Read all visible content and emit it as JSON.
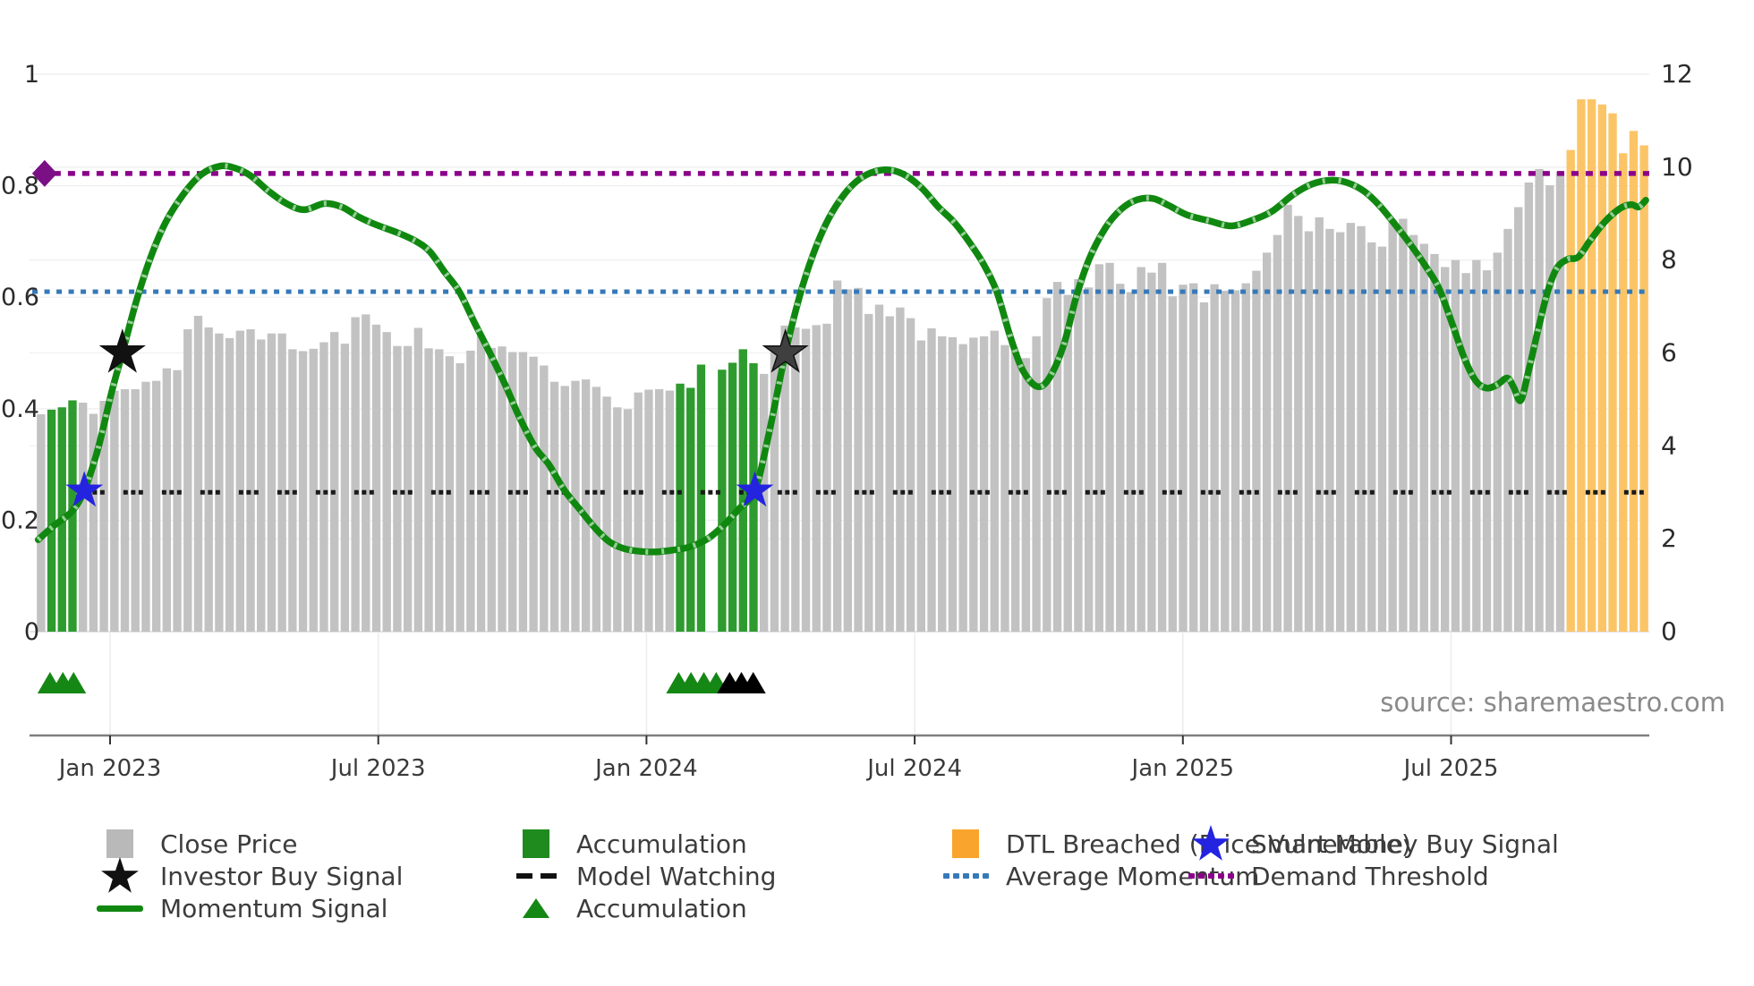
{
  "source_text": "source: sharemaestro.com",
  "colors": {
    "bar_gray": "#c2c2c2",
    "bar_green": "#2e9b2e",
    "bar_orange": "#fbc567",
    "momentum_green": "#108810",
    "momentum_hatch": "#c4e4c4",
    "avg_momentum_blue": "#3579b8",
    "demand_purple": "#8B008B",
    "model_watch_black": "#1a1a1a",
    "smart_money_blue": "#2323e0",
    "investor_star_black": "#111111",
    "investor_star2_gray": "#3f3f3f",
    "triangle_green": "#158715",
    "triangle_black": "#000000",
    "grid": "#f0f0f0",
    "baseline": "#dcdce4",
    "spine": "#7f7f7f",
    "tick_text": "#2b2b2b",
    "legend_gray": "#b9b9b9",
    "legend_green": "#1f8b1f",
    "legend_orange": "#f9a42c"
  },
  "chart_data": {
    "type": "bar",
    "title": "",
    "xlabel": "",
    "ylabel_left": "",
    "ylabel_right": "",
    "x_axis": {
      "tick_labels": [
        "Jan 2023",
        "Jul 2023",
        "Jan 2024",
        "Jul 2024",
        "Jan 2025",
        "Jul 2025"
      ],
      "tick_times": [
        2023.0,
        2023.5,
        2024.0,
        2024.5,
        2025.0,
        2025.5
      ],
      "range_times": [
        2022.85,
        2025.87
      ]
    },
    "left_y_axis": {
      "applies_to": "Momentum Signal",
      "range": [
        0,
        1
      ],
      "ticks": [
        "0",
        "0.2",
        "0.4",
        "0.6",
        "0.8",
        "1"
      ],
      "tick_values": [
        0,
        0.2,
        0.4,
        0.6,
        0.8,
        1
      ]
    },
    "right_y_axis": {
      "applies_to": "Close Price",
      "range": [
        0,
        12
      ],
      "ticks": [
        "0",
        "2",
        "4",
        "6",
        "8",
        "10",
        "12"
      ],
      "tick_values": [
        0,
        2,
        4,
        6,
        8,
        10,
        12
      ]
    },
    "grid": "both-axes horizontal, faint",
    "legend_position": "below chart, 4 columns",
    "bars": {
      "name": "Close Price (weekly)",
      "start_time": 2022.871,
      "step_time": 0.0196,
      "color_key": {
        "y": "gray close price",
        "g": "green accumulation",
        "o": "orange DTL breached",
        "n": "gap"
      },
      "values": [
        [
          4.68,
          "y"
        ],
        [
          4.78,
          "g"
        ],
        [
          4.83,
          "g"
        ],
        [
          4.98,
          "g"
        ],
        [
          4.93,
          "y"
        ],
        [
          4.69,
          "y"
        ],
        [
          4.97,
          "y"
        ],
        [
          5.19,
          "y"
        ],
        [
          5.22,
          "y"
        ],
        [
          5.22,
          "y"
        ],
        [
          5.38,
          "y"
        ],
        [
          5.4,
          "y"
        ],
        [
          5.67,
          "y"
        ],
        [
          5.63,
          "y"
        ],
        [
          6.51,
          "y"
        ],
        [
          6.8,
          "y"
        ],
        [
          6.55,
          "y"
        ],
        [
          6.42,
          "y"
        ],
        [
          6.32,
          "y"
        ],
        [
          6.48,
          "y"
        ],
        [
          6.51,
          "y"
        ],
        [
          6.29,
          "y"
        ],
        [
          6.42,
          "y"
        ],
        [
          6.42,
          "y"
        ],
        [
          6.08,
          "y"
        ],
        [
          6.04,
          "y"
        ],
        [
          6.09,
          "y"
        ],
        [
          6.23,
          "y"
        ],
        [
          6.45,
          "y"
        ],
        [
          6.2,
          "y"
        ],
        [
          6.77,
          "y"
        ],
        [
          6.83,
          "y"
        ],
        [
          6.61,
          "y"
        ],
        [
          6.45,
          "y"
        ],
        [
          6.15,
          "y"
        ],
        [
          6.15,
          "y"
        ],
        [
          6.54,
          "y"
        ],
        [
          6.1,
          "y"
        ],
        [
          6.08,
          "y"
        ],
        [
          5.93,
          "y"
        ],
        [
          5.78,
          "y"
        ],
        [
          6.05,
          "y"
        ],
        [
          6.38,
          "y"
        ],
        [
          6.11,
          "y"
        ],
        [
          6.14,
          "y"
        ],
        [
          6.02,
          "y"
        ],
        [
          6.02,
          "y"
        ],
        [
          5.92,
          "y"
        ],
        [
          5.73,
          "y"
        ],
        [
          5.38,
          "y"
        ],
        [
          5.29,
          "y"
        ],
        [
          5.4,
          "y"
        ],
        [
          5.43,
          "y"
        ],
        [
          5.27,
          "y"
        ],
        [
          5.06,
          "y"
        ],
        [
          4.83,
          "y"
        ],
        [
          4.79,
          "y"
        ],
        [
          5.15,
          "y"
        ],
        [
          5.21,
          "y"
        ],
        [
          5.22,
          "y"
        ],
        [
          5.19,
          "y"
        ],
        [
          5.34,
          "g"
        ],
        [
          5.25,
          "g"
        ],
        [
          5.75,
          "g"
        ],
        [
          null,
          "n"
        ],
        [
          5.64,
          "g"
        ],
        [
          5.79,
          "g"
        ],
        [
          6.08,
          "g"
        ],
        [
          5.78,
          "g"
        ],
        [
          5.55,
          "y"
        ],
        [
          6.02,
          "y"
        ],
        [
          6.59,
          "y"
        ],
        [
          6.55,
          "y"
        ],
        [
          6.52,
          "y"
        ],
        [
          6.6,
          "y"
        ],
        [
          6.63,
          "y"
        ],
        [
          7.56,
          "y"
        ],
        [
          7.37,
          "y"
        ],
        [
          7.4,
          "y"
        ],
        [
          6.84,
          "y"
        ],
        [
          7.04,
          "y"
        ],
        [
          6.79,
          "y"
        ],
        [
          6.98,
          "y"
        ],
        [
          6.75,
          "y"
        ],
        [
          6.27,
          "y"
        ],
        [
          6.53,
          "y"
        ],
        [
          6.36,
          "y"
        ],
        [
          6.34,
          "y"
        ],
        [
          6.19,
          "y"
        ],
        [
          6.33,
          "y"
        ],
        [
          6.36,
          "y"
        ],
        [
          6.48,
          "y"
        ],
        [
          6.17,
          "y"
        ],
        [
          6.03,
          "y"
        ],
        [
          5.89,
          "y"
        ],
        [
          6.36,
          "y"
        ],
        [
          7.18,
          "y"
        ],
        [
          7.53,
          "y"
        ],
        [
          7.25,
          "y"
        ],
        [
          7.59,
          "y"
        ],
        [
          7.41,
          "y"
        ],
        [
          7.91,
          "y"
        ],
        [
          7.94,
          "y"
        ],
        [
          7.49,
          "y"
        ],
        [
          7.31,
          "y"
        ],
        [
          7.85,
          "y"
        ],
        [
          7.73,
          "y"
        ],
        [
          7.94,
          "y"
        ],
        [
          7.22,
          "y"
        ],
        [
          7.47,
          "y"
        ],
        [
          7.5,
          "y"
        ],
        [
          7.09,
          "y"
        ],
        [
          7.48,
          "y"
        ],
        [
          7.34,
          "y"
        ],
        [
          7.35,
          "y"
        ],
        [
          7.5,
          "y"
        ],
        [
          7.77,
          "y"
        ],
        [
          8.16,
          "y"
        ],
        [
          8.54,
          "y"
        ],
        [
          9.19,
          "y"
        ],
        [
          8.95,
          "y"
        ],
        [
          8.62,
          "y"
        ],
        [
          8.92,
          "y"
        ],
        [
          8.67,
          "y"
        ],
        [
          8.6,
          "y"
        ],
        [
          8.8,
          "y"
        ],
        [
          8.73,
          "y"
        ],
        [
          8.38,
          "y"
        ],
        [
          8.29,
          "y"
        ],
        [
          8.86,
          "y"
        ],
        [
          8.89,
          "y"
        ],
        [
          8.54,
          "y"
        ],
        [
          8.35,
          "y"
        ],
        [
          8.13,
          "y"
        ],
        [
          7.85,
          "y"
        ],
        [
          8.0,
          "y"
        ],
        [
          7.72,
          "y"
        ],
        [
          8.0,
          "y"
        ],
        [
          7.78,
          "y"
        ],
        [
          8.16,
          "y"
        ],
        [
          8.67,
          "y"
        ],
        [
          9.14,
          "y"
        ],
        [
          9.67,
          "y"
        ],
        [
          9.96,
          "y"
        ],
        [
          9.61,
          "y"
        ],
        [
          9.9,
          "y"
        ],
        [
          10.37,
          "o"
        ],
        [
          11.46,
          "o"
        ],
        [
          11.46,
          "o"
        ],
        [
          11.35,
          "o"
        ],
        [
          11.16,
          "o"
        ],
        [
          10.3,
          "o"
        ],
        [
          10.78,
          "o"
        ],
        [
          10.47,
          "o"
        ]
      ]
    },
    "momentum_line": {
      "name": "Momentum Signal",
      "axis": "left",
      "points": [
        [
          2022.866,
          0.165
        ],
        [
          2022.895,
          0.19
        ],
        [
          2022.928,
          0.215
        ],
        [
          2022.952,
          0.253
        ],
        [
          2022.978,
          0.33
        ],
        [
          2023.003,
          0.43
        ],
        [
          2023.023,
          0.5
        ],
        [
          2023.048,
          0.59
        ],
        [
          2023.075,
          0.67
        ],
        [
          2023.104,
          0.735
        ],
        [
          2023.137,
          0.785
        ],
        [
          2023.17,
          0.82
        ],
        [
          2023.204,
          0.835
        ],
        [
          2023.232,
          0.832
        ],
        [
          2023.262,
          0.818
        ],
        [
          2023.296,
          0.79
        ],
        [
          2023.329,
          0.768
        ],
        [
          2023.362,
          0.757
        ],
        [
          2023.399,
          0.768
        ],
        [
          2023.432,
          0.762
        ],
        [
          2023.462,
          0.745
        ],
        [
          2023.496,
          0.73
        ],
        [
          2023.538,
          0.715
        ],
        [
          2023.571,
          0.7
        ],
        [
          2023.596,
          0.682
        ],
        [
          2023.624,
          0.645
        ],
        [
          2023.651,
          0.61
        ],
        [
          2023.679,
          0.555
        ],
        [
          2023.708,
          0.5
        ],
        [
          2023.738,
          0.44
        ],
        [
          2023.763,
          0.385
        ],
        [
          2023.793,
          0.33
        ],
        [
          2023.818,
          0.3
        ],
        [
          2023.846,
          0.255
        ],
        [
          2023.875,
          0.22
        ],
        [
          2023.905,
          0.185
        ],
        [
          2023.93,
          0.162
        ],
        [
          2023.955,
          0.15
        ],
        [
          2023.98,
          0.145
        ],
        [
          2024.013,
          0.143
        ],
        [
          2024.047,
          0.146
        ],
        [
          2024.08,
          0.152
        ],
        [
          2024.113,
          0.166
        ],
        [
          2024.143,
          0.19
        ],
        [
          2024.172,
          0.22
        ],
        [
          2024.202,
          0.253
        ],
        [
          2024.227,
          0.35
        ],
        [
          2024.259,
          0.5
        ],
        [
          2024.285,
          0.6
        ],
        [
          2024.31,
          0.675
        ],
        [
          2024.339,
          0.74
        ],
        [
          2024.369,
          0.785
        ],
        [
          2024.397,
          0.812
        ],
        [
          2024.427,
          0.826
        ],
        [
          2024.456,
          0.828
        ],
        [
          2024.484,
          0.818
        ],
        [
          2024.514,
          0.795
        ],
        [
          2024.544,
          0.762
        ],
        [
          2024.573,
          0.735
        ],
        [
          2024.601,
          0.7
        ],
        [
          2024.628,
          0.66
        ],
        [
          2024.653,
          0.61
        ],
        [
          2024.678,
          0.53
        ],
        [
          2024.701,
          0.47
        ],
        [
          2024.728,
          0.44
        ],
        [
          2024.751,
          0.455
        ],
        [
          2024.778,
          0.515
        ],
        [
          2024.801,
          0.6
        ],
        [
          2024.826,
          0.67
        ],
        [
          2024.856,
          0.725
        ],
        [
          2024.885,
          0.758
        ],
        [
          2024.915,
          0.775
        ],
        [
          2024.945,
          0.777
        ],
        [
          2024.973,
          0.765
        ],
        [
          2025.007,
          0.748
        ],
        [
          2025.049,
          0.737
        ],
        [
          2025.09,
          0.728
        ],
        [
          2025.129,
          0.738
        ],
        [
          2025.166,
          0.754
        ],
        [
          2025.207,
          0.785
        ],
        [
          2025.241,
          0.803
        ],
        [
          2025.278,
          0.81
        ],
        [
          2025.308,
          0.805
        ],
        [
          2025.338,
          0.79
        ],
        [
          2025.366,
          0.765
        ],
        [
          2025.396,
          0.73
        ],
        [
          2025.424,
          0.695
        ],
        [
          2025.453,
          0.655
        ],
        [
          2025.478,
          0.615
        ],
        [
          2025.503,
          0.55
        ],
        [
          2025.525,
          0.49
        ],
        [
          2025.546,
          0.45
        ],
        [
          2025.566,
          0.437
        ],
        [
          2025.586,
          0.443
        ],
        [
          2025.605,
          0.455
        ],
        [
          2025.617,
          0.438
        ],
        [
          2025.63,
          0.415
        ],
        [
          2025.645,
          0.47
        ],
        [
          2025.663,
          0.545
        ],
        [
          2025.68,
          0.61
        ],
        [
          2025.697,
          0.652
        ],
        [
          2025.717,
          0.668
        ],
        [
          2025.737,
          0.672
        ],
        [
          2025.758,
          0.7
        ],
        [
          2025.78,
          0.728
        ],
        [
          2025.8,
          0.748
        ],
        [
          2025.82,
          0.762
        ],
        [
          2025.837,
          0.766
        ],
        [
          2025.85,
          0.762
        ],
        [
          2025.863,
          0.774
        ]
      ]
    },
    "hlines": [
      {
        "name": "Demand Threshold",
        "value": 0.822,
        "style": "dotted",
        "color": "#8B008B",
        "start_time": 2022.868
      },
      {
        "name": "Average Momentum",
        "value": 0.61,
        "style": "dotted",
        "color": "#3579b8",
        "start_time": 2022.855
      },
      {
        "name": "Model Watching",
        "value": 0.25,
        "style": "dashed-clusters",
        "color": "#1a1a1a",
        "start_time": 2022.953
      }
    ],
    "markers": {
      "investor_buy_signals": [
        {
          "time": 2023.023,
          "value": 0.5,
          "fill": "#111111"
        },
        {
          "time": 2024.259,
          "value": 0.5,
          "fill": "#3f3f3f"
        }
      ],
      "smart_money_buy_signals": [
        {
          "time": 2022.952,
          "value": 0.253
        },
        {
          "time": 2024.202,
          "value": 0.253
        }
      ],
      "demand_threshold_diamond": {
        "time": 2022.878,
        "value": 0.822
      },
      "accumulation_triangles_green": [
        2022.888,
        2022.912,
        2022.932,
        2024.06,
        2024.083,
        2024.107,
        2024.13
      ],
      "triangles_black": [
        2024.155,
        2024.177,
        2024.199
      ]
    }
  },
  "legend": {
    "items": [
      {
        "swatch": "square",
        "color": "#b9b9b9",
        "label": "Close Price"
      },
      {
        "swatch": "star",
        "color": "#111111",
        "label": "Investor Buy Signal"
      },
      {
        "swatch": "line",
        "color": "#108810",
        "label": "Momentum Signal"
      },
      {
        "swatch": "square",
        "color": "#1f8b1f",
        "label": "Accumulation"
      },
      {
        "swatch": "dashes",
        "color": "#111111",
        "label": "Model Watching"
      },
      {
        "swatch": "triangle",
        "color": "#158715",
        "label": "Accumulation"
      },
      {
        "swatch": "square",
        "color": "#f9a42c",
        "label": "DTL Breached (Price Vulnerable)"
      },
      {
        "swatch": "dots",
        "color": "#3579b8",
        "label": "Average Momentum"
      },
      {
        "swatch": "star",
        "color": "#2323e0",
        "label": "Smart Money Buy Signal"
      },
      {
        "swatch": "dots",
        "color": "#8B008B",
        "label": "Demand Threshold"
      }
    ]
  }
}
